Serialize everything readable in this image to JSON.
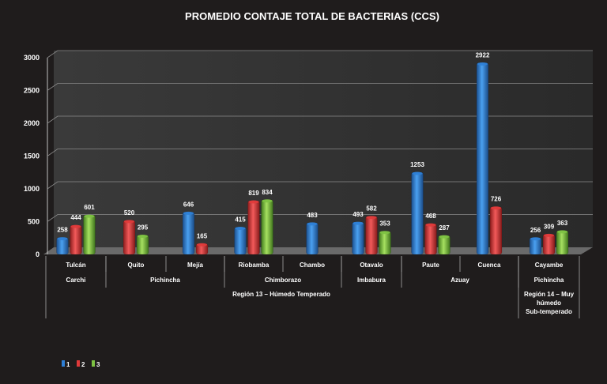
{
  "chart_data": {
    "type": "bar",
    "title": "PROMEDIO CONTAJE  TOTAL  DE BACTERIAS (CCS)",
    "ylim": [
      0,
      3000
    ],
    "yticks": [
      0,
      500,
      1000,
      1500,
      2000,
      2500,
      3000
    ],
    "categories": [
      "Tulcán",
      "Quito",
      "Mejía",
      "Riobamba",
      "Chambo",
      "Otavalo",
      "Paute",
      "Cuenca",
      "Cayambe"
    ],
    "provinces": [
      {
        "label": "Carchi",
        "span": [
          0,
          0
        ]
      },
      {
        "label": "Pichincha",
        "span": [
          1,
          2
        ]
      },
      {
        "label": "Chimborazo",
        "span": [
          3,
          4
        ]
      },
      {
        "label": "Imbabura",
        "span": [
          5,
          5
        ]
      },
      {
        "label": "Azuay",
        "span": [
          6,
          7
        ]
      },
      {
        "label": "Pichincha",
        "span": [
          8,
          8
        ]
      }
    ],
    "regions": [
      {
        "label": "Región 13 – Húmedo Temperado",
        "span": [
          0,
          7
        ]
      },
      {
        "label": "Región 14 – Muy húmedo Sub-temperado",
        "span": [
          8,
          8
        ]
      }
    ],
    "series": [
      {
        "name": "1",
        "color": "#2e7fd6",
        "values": [
          258,
          null,
          646,
          415,
          483,
          493,
          1253,
          2922,
          256
        ]
      },
      {
        "name": "2",
        "color": "#e03a3a",
        "values": [
          444,
          520,
          165,
          819,
          null,
          582,
          468,
          726,
          309
        ]
      },
      {
        "name": "3",
        "color": "#7dc242",
        "values": [
          601,
          295,
          null,
          834,
          null,
          353,
          287,
          null,
          363
        ]
      }
    ],
    "legend_position": "bottom-left",
    "grid": true
  }
}
